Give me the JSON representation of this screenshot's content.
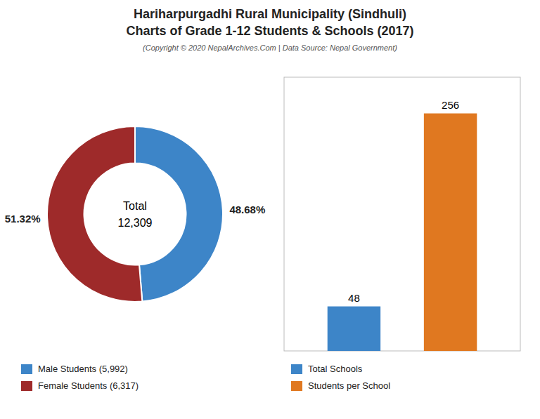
{
  "chart_data": [
    {
      "type": "donut",
      "title": [
        "Hariharpurgadhi Rural Municipality (Sindhuli)",
        "Charts of Grade 1-12 Students & Schools (2017)"
      ],
      "subtitle": "(Copyright © 2020 NepalArchives.Com | Data Source: Nepal Government)",
      "categories": [
        "Male Students (5,992)",
        "Female Students (6,317)"
      ],
      "values": [
        48.68,
        51.32
      ],
      "value_labels": [
        "48.68%",
        "51.32%"
      ],
      "colors": [
        "#3d85c8",
        "#9e2a2a"
      ],
      "annotations": [
        "Total",
        "12,309"
      ],
      "data_labels": true,
      "legend": "lower left"
    },
    {
      "type": "bar",
      "categories": [
        "Total Schools",
        "Students per School"
      ],
      "values": [
        48,
        256
      ],
      "colors": [
        "#3d85c8",
        "#e07820"
      ],
      "ylim": [
        0,
        295
      ],
      "data_labels": true,
      "tick_labels": false,
      "legend": "lower left"
    }
  ]
}
